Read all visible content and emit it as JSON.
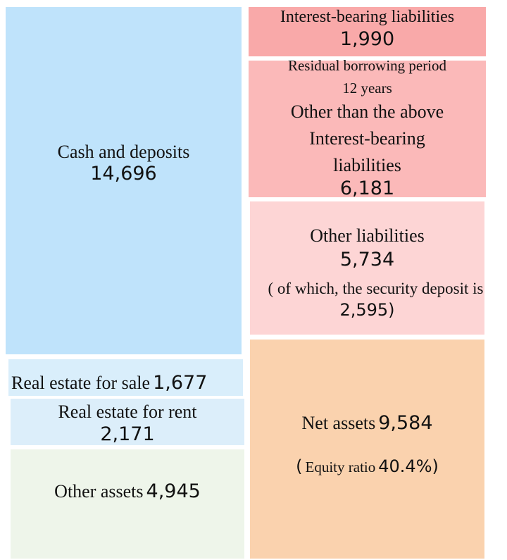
{
  "assets": [
    {
      "label": "Cash and deposits",
      "value": "14,696"
    },
    {
      "label": "Real estate for sale",
      "value": "1,677"
    },
    {
      "label": "Real estate for rent",
      "value": "2,171"
    },
    {
      "label": "Other assets",
      "value": "4,945"
    }
  ],
  "liabilities": [
    {
      "label": "Interest-bearing liabilities",
      "value": "1,990"
    },
    {
      "note": "Residual borrowing period",
      "note2": "12 years",
      "label": "Other than the above",
      "label2": "Interest-bearing",
      "label3": "liabilities",
      "value": "6,181"
    },
    {
      "label": "Other liabilities",
      "value": "5,734",
      "note": "( of which, the security deposit is",
      "note_value": "2,595)"
    }
  ],
  "net_assets": {
    "label": "Net assets",
    "value": "9,584",
    "note_open": "(",
    "note": "Equity ratio",
    "note_value": "40.4%)"
  }
}
